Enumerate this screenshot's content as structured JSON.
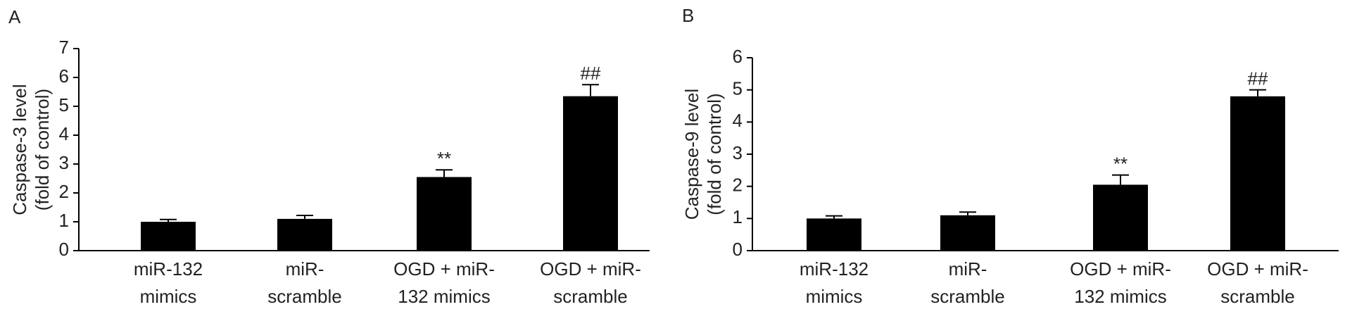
{
  "chart_data": [
    {
      "type": "bar",
      "panel": "A",
      "ylabel": [
        "Caspase-3 level",
        "(fold of control)"
      ],
      "categories": [
        [
          "miR-132",
          "mimics"
        ],
        [
          "miR-",
          "scramble"
        ],
        [
          "OGD + miR-",
          "132 mimics"
        ],
        [
          "OGD + miR-",
          "scramble"
        ]
      ],
      "values": [
        1.0,
        1.1,
        2.55,
        5.35
      ],
      "errors": [
        0.08,
        0.12,
        0.25,
        0.4
      ],
      "annotations": [
        {
          "index": 2,
          "text": "**"
        },
        {
          "index": 3,
          "text": "##"
        }
      ],
      "color": "#000000",
      "ylim": [
        0,
        7
      ],
      "yticks": [
        0,
        1,
        2,
        3,
        4,
        5,
        6,
        7
      ]
    },
    {
      "type": "bar",
      "panel": "B",
      "ylabel": [
        "Caspase-9 level",
        "(fold of control)"
      ],
      "categories": [
        [
          "miR-132",
          "mimics"
        ],
        [
          "miR-",
          "scramble"
        ],
        [
          "OGD + miR-",
          "132 mimics"
        ],
        [
          "OGD + miR-",
          "scramble"
        ]
      ],
      "values": [
        1.0,
        1.1,
        2.05,
        4.8
      ],
      "errors": [
        0.08,
        0.1,
        0.3,
        0.2
      ],
      "annotations": [
        {
          "index": 2,
          "text": "**"
        },
        {
          "index": 3,
          "text": "##"
        }
      ],
      "color": "#000000",
      "ylim": [
        0,
        6
      ],
      "yticks": [
        0,
        1,
        2,
        3,
        4,
        5,
        6
      ]
    }
  ]
}
